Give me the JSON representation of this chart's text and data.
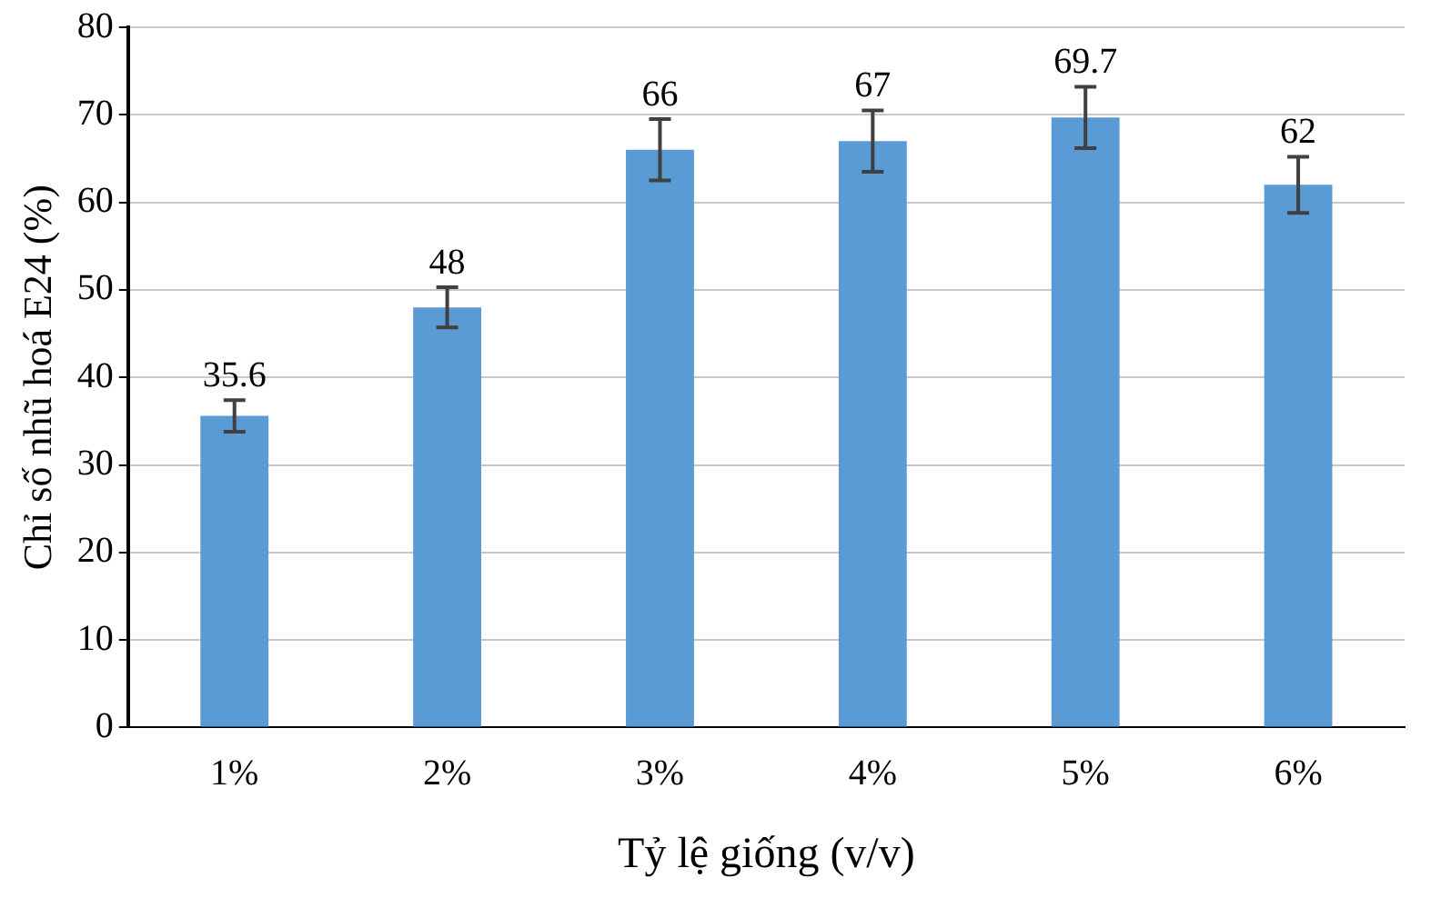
{
  "chart_data": {
    "type": "bar",
    "xlabel": "Tỷ lệ giống (v/v)",
    "ylabel": "Chỉ số nhũ hoá E24 (%)",
    "categories": [
      "1%",
      "2%",
      "3%",
      "4%",
      "5%",
      "6%"
    ],
    "values": [
      35.6,
      48,
      66,
      67,
      69.7,
      62
    ],
    "errors": [
      1.8,
      2.3,
      3.5,
      3.5,
      3.5,
      3.2
    ],
    "color": "#5b9bd5",
    "ylim": [
      0,
      80
    ],
    "yticks": [
      0,
      10,
      20,
      30,
      40,
      50,
      60,
      70,
      80
    ],
    "grid": "y",
    "data_labels": true
  }
}
